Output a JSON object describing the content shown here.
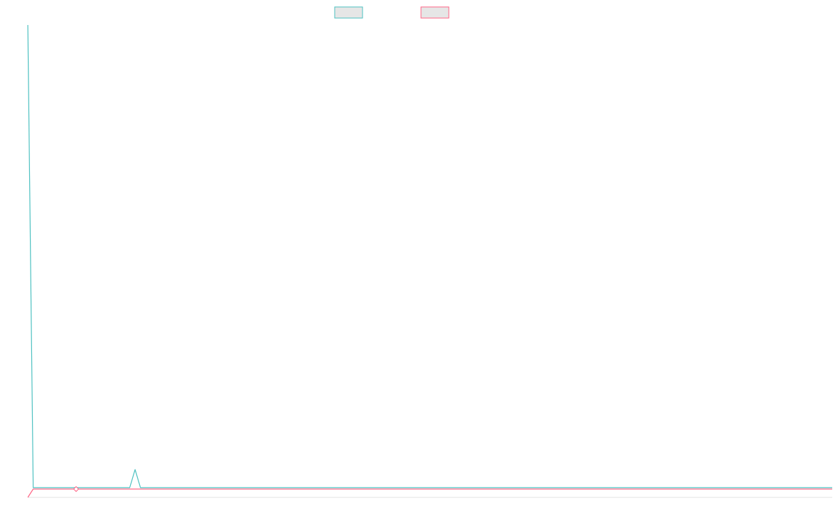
{
  "chart_data": {
    "type": "line",
    "title": "",
    "xlabel": "",
    "ylabel": "",
    "grid": false,
    "legend_position": "top-center",
    "x": [
      0,
      1,
      2,
      3,
      4,
      5,
      6,
      7,
      8,
      9,
      10,
      11,
      12,
      13,
      14,
      15,
      16,
      17,
      18,
      19,
      20,
      21,
      22,
      23,
      24,
      25,
      26,
      27,
      28,
      29,
      30,
      31,
      32,
      33,
      34,
      35,
      36,
      37,
      38,
      39,
      40,
      41,
      42,
      43,
      44,
      45,
      46,
      47,
      48,
      49,
      50,
      51,
      52,
      53,
      54,
      55,
      56,
      57,
      58,
      59,
      60,
      61,
      62,
      63,
      64,
      65,
      66,
      67,
      68,
      69,
      70,
      71,
      72,
      73,
      74,
      75,
      76,
      77,
      78,
      79,
      80,
      81,
      82,
      83,
      84,
      85,
      86,
      87,
      88,
      89,
      90,
      91,
      92,
      93,
      94,
      95,
      96,
      97,
      98,
      99,
      100,
      101,
      102,
      103,
      104,
      105,
      106,
      107,
      108,
      109,
      110,
      111,
      112,
      113,
      114,
      115,
      116,
      117,
      118,
      119,
      120,
      121,
      122,
      123,
      124,
      125,
      126,
      127,
      128,
      129,
      130,
      131,
      132,
      133,
      134,
      135,
      136,
      137,
      138,
      139,
      140,
      141,
      142,
      143,
      144,
      145,
      146,
      147,
      148,
      149,
      150
    ],
    "series": [
      {
        "color": "#4bc0c0",
        "fill": "#e6e6e6",
        "values": [
          100,
          0.3,
          0.3,
          0.3,
          0.3,
          0.3,
          0.3,
          0.3,
          0.3,
          0.3,
          0.3,
          0.3,
          0.3,
          0.3,
          0.3,
          0.3,
          0.3,
          0.3,
          0.3,
          0.3,
          4.2,
          0.3,
          0.3,
          0.3,
          0.3,
          0.3,
          0.3,
          0.3,
          0.3,
          0.3,
          0.3,
          0.3,
          0.3,
          0.3,
          0.3,
          0.3,
          0.3,
          0.3,
          0.3,
          0.3,
          0.3,
          0.3,
          0.3,
          0.3,
          0.3,
          0.3,
          0.3,
          0.3,
          0.3,
          0.3,
          0.3,
          0.3,
          0.3,
          0.3,
          0.3,
          0.3,
          0.3,
          0.3,
          0.3,
          0.3,
          0.3,
          0.3,
          0.3,
          0.3,
          0.3,
          0.3,
          0.3,
          0.3,
          0.3,
          0.3,
          0.3,
          0.3,
          0.3,
          0.3,
          0.3,
          0.3,
          0.3,
          0.3,
          0.3,
          0.3,
          0.3,
          0.3,
          0.3,
          0.3,
          0.3,
          0.3,
          0.3,
          0.3,
          0.3,
          0.3,
          0.3,
          0.3,
          0.3,
          0.3,
          0.3,
          0.3,
          0.3,
          0.3,
          0.3,
          0.3,
          0.3,
          0.3,
          0.3,
          0.3,
          0.3,
          0.3,
          0.3,
          0.3,
          0.3,
          0.3,
          0.3,
          0.3,
          0.3,
          0.3,
          0.3,
          0.3,
          0.3,
          0.3,
          0.3,
          0.3,
          0.3,
          0.3,
          0.3,
          0.3,
          0.3,
          0.3,
          0.3,
          0.3,
          0.3,
          0.3,
          0.3,
          0.3,
          0.3,
          0.3,
          0.3,
          0.3,
          0.3,
          0.3,
          0.3,
          0.3,
          0.3,
          0.3,
          0.3,
          0.3,
          0.3,
          0.3,
          0.3,
          0.3,
          0.3,
          0.3,
          0.3
        ]
      },
      {
        "color": "#ff6384",
        "fill": "#e6e6e6",
        "values": [
          -2,
          0,
          0,
          0,
          0,
          0,
          0,
          0,
          0,
          0,
          0,
          0,
          0,
          0,
          0,
          0,
          0,
          0,
          0,
          0,
          0,
          0,
          0,
          0,
          0,
          0,
          0,
          0,
          0,
          0,
          0,
          0,
          0,
          0,
          0,
          0,
          0,
          0,
          0,
          0,
          0,
          0,
          0,
          0,
          0,
          0,
          0,
          0,
          0,
          0,
          0,
          0,
          0,
          0,
          0,
          0,
          0,
          0,
          0,
          0,
          0,
          0,
          0,
          0,
          0,
          0,
          0,
          0,
          0,
          0,
          0,
          0,
          0,
          0,
          0,
          0,
          0,
          0,
          0,
          0,
          0,
          0,
          0,
          0,
          0,
          0,
          0,
          0,
          0,
          0,
          0,
          0,
          0,
          0,
          0,
          0,
          0,
          0,
          0,
          0,
          0,
          0,
          0,
          0,
          0,
          0,
          0,
          0,
          0,
          0,
          0,
          0,
          0,
          0,
          0,
          0,
          0,
          0,
          0,
          0,
          0,
          0,
          0,
          0,
          0,
          0,
          0,
          0,
          0,
          0,
          0,
          0,
          0,
          0,
          0,
          0,
          0,
          0,
          0,
          0,
          0,
          0,
          0,
          0,
          0,
          0,
          0,
          0,
          0,
          0,
          0
        ],
        "marker_x": 9
      }
    ]
  }
}
